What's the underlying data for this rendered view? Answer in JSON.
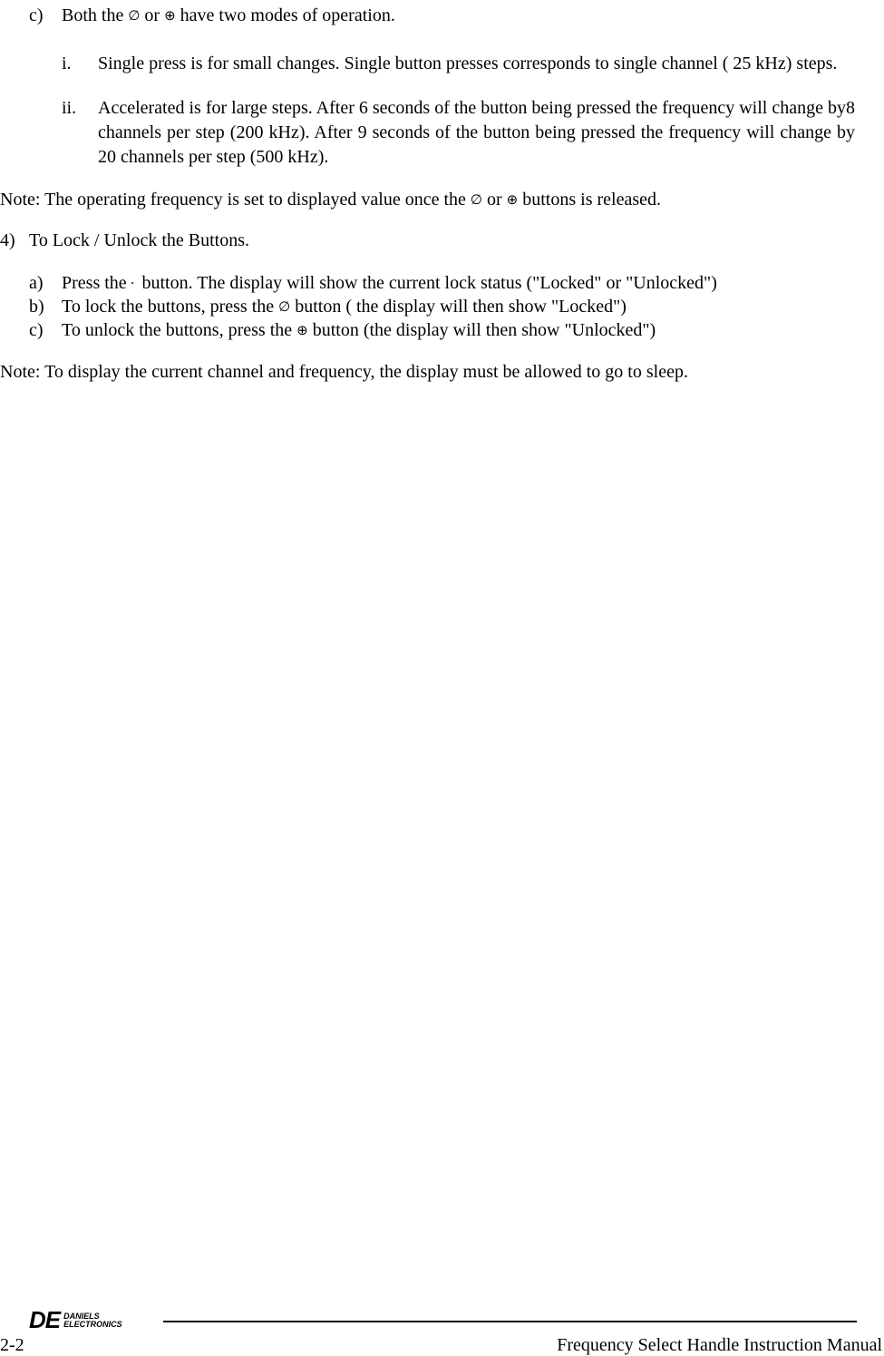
{
  "content": {
    "item_c_marker": "c)",
    "item_c_text_1": "Both the ",
    "item_c_text_2": " or ",
    "item_c_text_3": " have two modes of operation.",
    "sym_up": "∅",
    "sym_down": "⊕",
    "sub_i_marker": "i.",
    "sub_i_text": "Single press is for small changes.  Single button presses corresponds to single channel ( 25 kHz) steps.",
    "sub_ii_marker": "ii.",
    "sub_ii_text": "Accelerated is for large steps.  After 6 seconds of the button being pressed the frequency will change by8 channels per step (200 kHz).  After 9 seconds of the button being pressed the frequency will change by 20 channels per step (500 kHz).",
    "note1_a": "Note: The operating frequency is set to displayed value once the ",
    "note1_b": " or ",
    "note1_c": " buttons is released.",
    "item4_marker": "4)",
    "item4_text": "To Lock / Unlock the Buttons.",
    "alpha_a_marker": "a)",
    "alpha_a_1": "Press the  ",
    "alpha_a_dot": "•",
    "alpha_a_2": "  button. The display will show  the current lock status (\"Locked\" or \"Unlocked\")",
    "alpha_b_marker": "b)",
    "alpha_b_1": "To lock the buttons, press the ",
    "alpha_b_2": " button ( the display will then show \"Locked\")",
    "alpha_c_marker": "c)",
    "alpha_c_1": "To unlock the buttons, press the ",
    "alpha_c_2": " button (the display will then show \"Unlocked\")",
    "note2": "Note: To display the current channel and frequency, the display must be allowed to go to sleep."
  },
  "footer": {
    "logo_de": "DE",
    "logo_line1": "DANIELS",
    "logo_line2": "ELECTRONICS",
    "page_num": "2-2",
    "manual_title": "Frequency Select Handle Instruction Manual"
  },
  "style": {
    "text_color": "#000000",
    "background_color": "#ffffff",
    "body_fontsize": 20,
    "symbol_fontsize": 15,
    "logo_de_fontsize": 26,
    "logo_small_fontsize": 9,
    "line_color": "#000000"
  }
}
